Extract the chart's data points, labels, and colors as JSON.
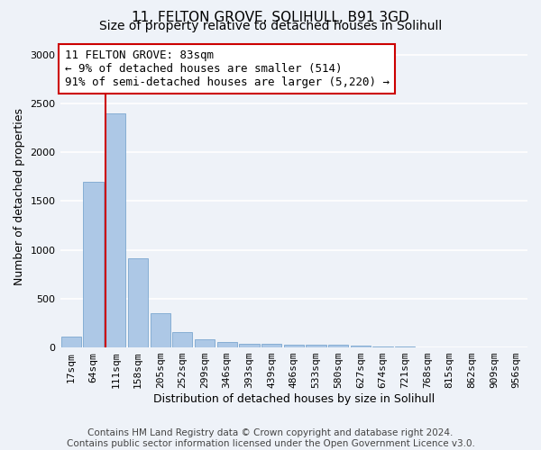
{
  "title_line1": "11, FELTON GROVE, SOLIHULL, B91 3GD",
  "title_line2": "Size of property relative to detached houses in Solihull",
  "xlabel": "Distribution of detached houses by size in Solihull",
  "ylabel": "Number of detached properties",
  "footer_line1": "Contains HM Land Registry data © Crown copyright and database right 2024.",
  "footer_line2": "Contains public sector information licensed under the Open Government Licence v3.0.",
  "annotation_line1": "11 FELTON GROVE: 83sqm",
  "annotation_line2": "← 9% of detached houses are smaller (514)",
  "annotation_line3": "91% of semi-detached houses are larger (5,220) →",
  "bin_labels": [
    "17sqm",
    "64sqm",
    "111sqm",
    "158sqm",
    "205sqm",
    "252sqm",
    "299sqm",
    "346sqm",
    "393sqm",
    "439sqm",
    "486sqm",
    "533sqm",
    "580sqm",
    "627sqm",
    "674sqm",
    "721sqm",
    "768sqm",
    "815sqm",
    "862sqm",
    "909sqm",
    "956sqm"
  ],
  "bar_values": [
    115,
    1700,
    2400,
    910,
    350,
    155,
    80,
    57,
    40,
    35,
    25,
    25,
    30,
    15,
    10,
    8,
    5,
    4,
    3,
    2,
    2
  ],
  "bar_color": "#adc8e6",
  "bar_edge_color": "#6a9cc9",
  "red_line_x": 1.55,
  "ylim": [
    0,
    3100
  ],
  "yticks": [
    0,
    500,
    1000,
    1500,
    2000,
    2500,
    3000
  ],
  "background_color": "#eef2f8",
  "grid_color": "#ffffff",
  "annotation_box_facecolor": "#ffffff",
  "annotation_box_edgecolor": "#cc0000",
  "red_line_color": "#cc0000",
  "title_fontsize": 11,
  "subtitle_fontsize": 10,
  "axis_label_fontsize": 9,
  "tick_fontsize": 8,
  "annotation_fontsize": 9,
  "footer_fontsize": 7.5
}
